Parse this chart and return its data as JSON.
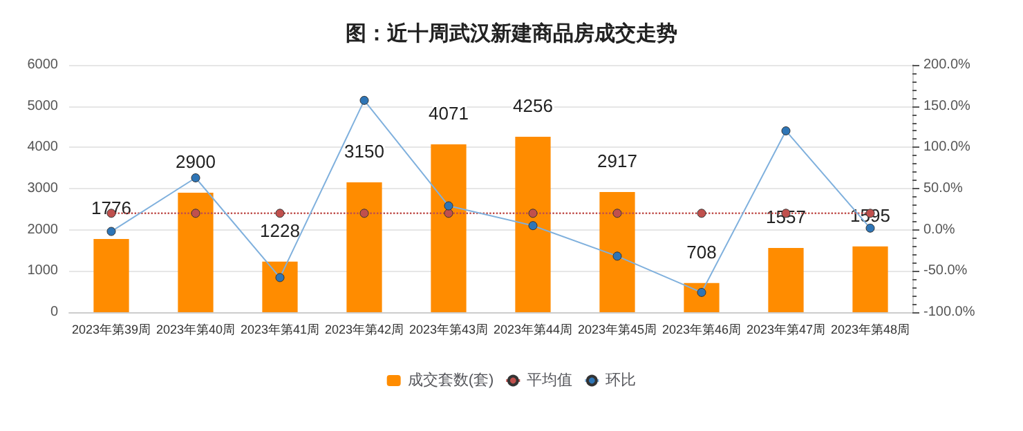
{
  "chart_data": {
    "type": "bar",
    "title": "图：近十周武汉新建商品房成交走势",
    "categories": [
      "2023年第39周",
      "2023年第40周",
      "2023年第41周",
      "2023年第42周",
      "2023年第43周",
      "2023年第44周",
      "2023年第45周",
      "2023年第46周",
      "2023年第47周",
      "2023年第48周"
    ],
    "series": [
      {
        "name": "成交套数(套)",
        "color": "#ff8c00",
        "values": [
          1776,
          2900,
          1228,
          3150,
          4071,
          4256,
          2917,
          708,
          1557,
          1595
        ],
        "value_labels": [
          "1776",
          "2900",
          "1228",
          "3150",
          "4071",
          "4256",
          "2917",
          "708",
          "1557",
          "1595"
        ]
      },
      {
        "name": "平均值",
        "type": "line",
        "color": "#c0504d",
        "line_style": "dotted",
        "values": [
          2400,
          2400,
          2400,
          2400,
          2400,
          2400,
          2400,
          2400,
          2400,
          2400
        ]
      },
      {
        "name": "环比",
        "type": "line",
        "axis": "y2",
        "color": "#2e75b6",
        "line_style": "solid",
        "values": [
          -2,
          63,
          -58,
          157,
          29,
          5,
          -32,
          -76,
          120,
          2
        ]
      }
    ],
    "ylim": [
      0,
      6000
    ],
    "yticks": [
      0,
      1000,
      2000,
      3000,
      4000,
      5000,
      6000
    ],
    "y2lim": [
      -100,
      200
    ],
    "y2ticks": [
      {
        "value": -100,
        "label": "-100.0%"
      },
      {
        "value": -50,
        "label": "-50.0%"
      },
      {
        "value": 0,
        "label": "0.0%"
      },
      {
        "value": 50,
        "label": "50.0%"
      },
      {
        "value": 100,
        "label": "100.0%"
      },
      {
        "value": 150,
        "label": "150.0%"
      },
      {
        "value": 200,
        "label": "200.0%"
      }
    ],
    "marker": "circle",
    "grid": "y",
    "legend": "bottom"
  }
}
